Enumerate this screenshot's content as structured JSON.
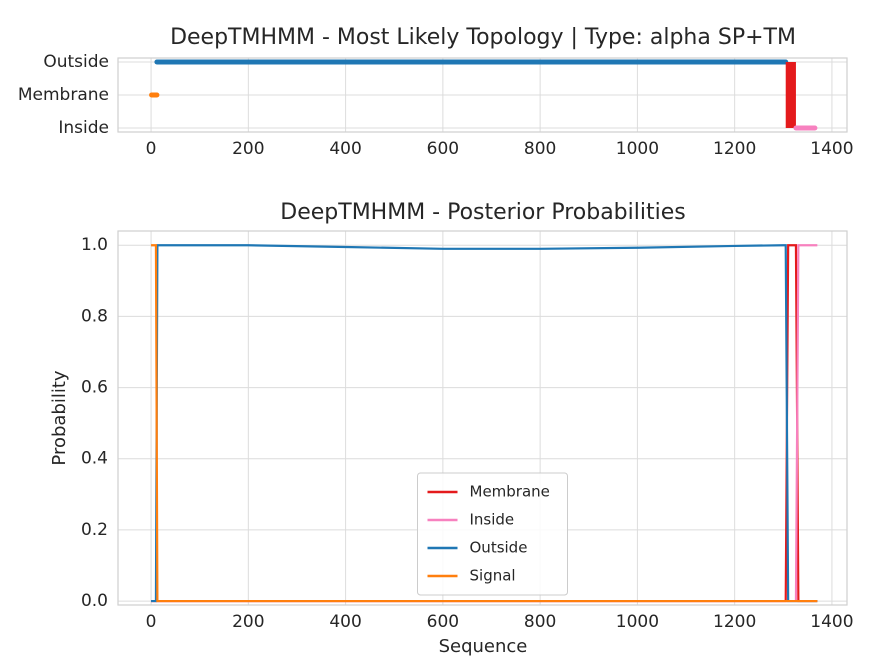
{
  "chart_data": [
    {
      "type": "topology",
      "title": "DeepTMHMM - Most Likely Topology | Type: alpha SP+TM",
      "levels": [
        "Outside",
        "Membrane",
        "Inside"
      ],
      "xlim": [
        -68,
        1431
      ],
      "xticks": [
        0,
        200,
        400,
        600,
        800,
        1000,
        1200,
        1400
      ],
      "grid": true,
      "segments": [
        {
          "start": 1,
          "end": 12,
          "from": "Membrane",
          "to": "Membrane",
          "color": "#ff7f0e"
        },
        {
          "start": 12,
          "end": 1305,
          "from": "Outside",
          "to": "Outside",
          "color": "#1f77b4"
        },
        {
          "start": 1305,
          "end": 1326,
          "from": "Outside",
          "to": "Inside",
          "color": "#e41a1c"
        },
        {
          "start": 1326,
          "end": 1365,
          "from": "Inside",
          "to": "Inside",
          "color": "#f781bf"
        }
      ]
    },
    {
      "type": "line",
      "title": "DeepTMHMM - Posterior Probabilities",
      "xlabel": "Sequence",
      "ylabel": "Probability",
      "xlim": [
        -68,
        1431
      ],
      "xticks": [
        0,
        200,
        400,
        600,
        800,
        1000,
        1200,
        1400
      ],
      "ylim": [
        -0.011,
        1.04
      ],
      "yticks": [
        {
          "value": 0,
          "label": "0.0"
        },
        0.2,
        0.4,
        0.6,
        0.8,
        {
          "value": 1,
          "label": "1.0"
        }
      ],
      "grid": true,
      "legend": "lower center",
      "series": [
        {
          "name": "Membrane",
          "color": "#e41a1c",
          "x": [
            0,
            1305,
            1310,
            1326,
            1331,
            1370
          ],
          "values": [
            0,
            0,
            1,
            1,
            0,
            0
          ]
        },
        {
          "name": "Inside",
          "color": "#f781bf",
          "x": [
            0,
            1326,
            1331,
            1370
          ],
          "values": [
            0,
            0,
            1,
            1
          ]
        },
        {
          "name": "Outside",
          "color": "#1f77b4",
          "x": [
            0,
            10,
            13,
            200,
            400,
            600,
            800,
            1000,
            1200,
            1300,
            1305,
            1310,
            1370
          ],
          "values": [
            0,
            0,
            1,
            1,
            0.995,
            0.99,
            0.99,
            0.993,
            0.998,
            1,
            1,
            0,
            0
          ]
        },
        {
          "name": "Signal",
          "color": "#ff7f0e",
          "x": [
            0,
            10,
            13,
            1370
          ],
          "values": [
            1,
            1,
            0,
            0
          ]
        }
      ]
    }
  ]
}
